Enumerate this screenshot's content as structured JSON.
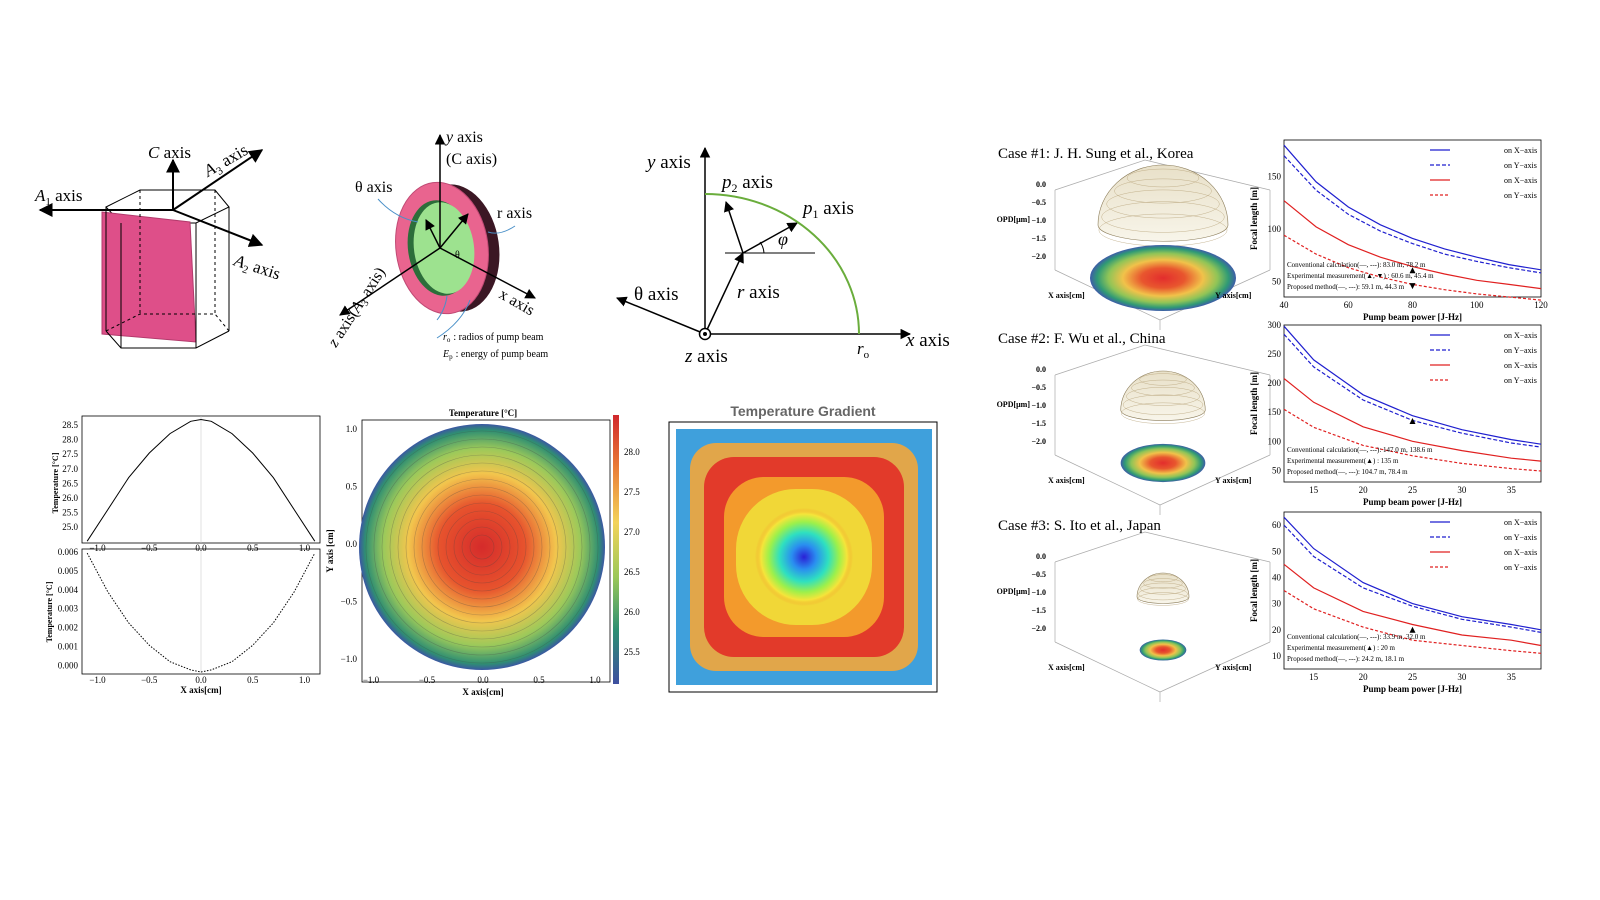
{
  "diagram_crystal": {
    "c_axis": "C axis",
    "a1_axis": "A",
    "a1_sub": "1",
    "a2_axis": "A",
    "a2_sub": "2",
    "a3_axis": "A",
    "a3_sub": "3",
    "axis_word": " axis"
  },
  "diagram_disk": {
    "y_axis": "y axis",
    "c_axis_note": "(C axis)",
    "theta_axis": "θ axis",
    "r_axis": "r axis",
    "x_axis": "x axis",
    "z_axis": "z axis(A",
    "z_axis_sub": "3",
    "z_axis_end": " axis)",
    "theta_small": "θ",
    "legend_ro": ": radios of pump beam",
    "legend_ep": ": energy of pump beam",
    "ro_sym": "r",
    "ro_sub": "o",
    "ep_sym": "E",
    "ep_sub": "p"
  },
  "diagram_polar": {
    "y_axis": "y axis",
    "p2_axis": "p",
    "p2_sub": "2",
    "p1_axis": "p",
    "p1_sub": "1",
    "axis_word": " axis",
    "phi": "φ",
    "theta_axis": "θ axis",
    "r_axis": "r axis",
    "x_axis": "x axis",
    "z_axis": "z axis",
    "ro_sym": "r",
    "ro_sub": "o"
  },
  "temperature_panels": {
    "top_ylabel": "Temperature [°C]",
    "top_yticks": [
      "28.5",
      "28.0",
      "27.5",
      "27.0",
      "26.5",
      "26.0",
      "25.5",
      "25.0"
    ],
    "bottom_ylabel": "Temperature [°C]",
    "bottom_yticks": [
      "0.006",
      "0.005",
      "0.004",
      "0.003",
      "0.002",
      "0.001",
      "0.000"
    ],
    "xticks": [
      "−1.0",
      "−0.5",
      "0.0",
      "0.5",
      "1.0"
    ],
    "xlabel": "X axis[cm]"
  },
  "temperature_map": {
    "title": "Temperature [°C]",
    "xlabel": "X axis[cm]",
    "ylabel": "Y axis [cm]",
    "xticks": [
      "−1.0",
      "−0.5",
      "0.0",
      "0.5",
      "1.0"
    ],
    "yticks": [
      "1.0",
      "0.5",
      "0.0",
      "−0.5",
      "−1.0"
    ],
    "colorbar_ticks": [
      "28.0",
      "27.5",
      "27.0",
      "26.5",
      "26.0",
      "25.5"
    ]
  },
  "gradient_panel": {
    "title": "Temperature Gradient"
  },
  "cases": [
    {
      "title": "Case #1: J. H. Sung et al., Korea",
      "opd_ticks": [
        "0.0",
        "−0.5",
        "−1.0",
        "−1.5",
        "−2.0"
      ],
      "opd_label": "OPD[μm]",
      "x_label": "X axis[cm]",
      "y_label": "Y axis[cm]",
      "ylabel": "Focal length [m]",
      "xlabel": "Pump beam power [J-Hz]",
      "yticks": [
        "150",
        "100",
        "50"
      ],
      "xticks": [
        "40",
        "60",
        "80",
        "100",
        "120"
      ],
      "legend": [
        "on X−axis",
        "on Y−axis",
        "on X−axis",
        "on Y−axis"
      ],
      "notes": [
        "Conventional calculation(—, ---): 83.0 m, 78.2 m",
        "Experimental measurement(▲, ▼) : 60.6 m, 45.4 m",
        "Proposed method(—, ---): 59.1 m, 44.3 m"
      ]
    },
    {
      "title": "Case #2: F. Wu et al., China",
      "opd_ticks": [
        "0.0",
        "−0.5",
        "−1.0",
        "−1.5",
        "−2.0"
      ],
      "opd_label": "OPD[μm]",
      "x_label": "X axis[cm]",
      "y_label": "Y axis[cm]",
      "ylabel": "Focal length [m]",
      "xlabel": "Pump beam power [J-Hz]",
      "yticks": [
        "300",
        "250",
        "200",
        "150",
        "100",
        "50"
      ],
      "xticks": [
        "15",
        "20",
        "25",
        "30",
        "35"
      ],
      "legend": [
        "on X−axis",
        "on Y−axis",
        "on X−axis",
        "on Y−axis"
      ],
      "notes": [
        "Conventional calculation(—, ---): 147.0 m, 138.6 m",
        "Experimental measurement(▲) : 135 m",
        "Proposed method(—, ---): 104.7 m, 78.4 m"
      ]
    },
    {
      "title": "Case #3: S. Ito et al., Japan",
      "opd_ticks": [
        "0.0",
        "−0.5",
        "−1.0",
        "−1.5",
        "−2.0"
      ],
      "opd_label": "OPD[μm]",
      "x_label": "X axis[cm]",
      "y_label": "Y axis[cm]",
      "ylabel": "Focal length [m]",
      "xlabel": "Pump beam power [J-Hz]",
      "yticks": [
        "60",
        "50",
        "40",
        "30",
        "20",
        "10"
      ],
      "xticks": [
        "15",
        "20",
        "25",
        "30",
        "35"
      ],
      "legend": [
        "on X−axis",
        "on Y−axis",
        "on X−axis",
        "on Y−axis"
      ],
      "notes": [
        "Conventional calculation(—, ---): 33.9 m, 32.0 m",
        "Experimental measurement(▲) : 20 m",
        "Proposed method(—, ---): 24.2 m, 18.1 m"
      ]
    }
  ],
  "chart_data": [
    {
      "type": "line",
      "title": "",
      "xlabel": "X axis[cm]",
      "ylabel": "Temperature [°C]",
      "x": [
        -1.1,
        -0.9,
        -0.7,
        -0.5,
        -0.3,
        -0.1,
        0,
        0.1,
        0.3,
        0.5,
        0.7,
        0.9,
        1.1
      ],
      "values": [
        25.05,
        25.95,
        26.85,
        27.55,
        28.1,
        28.45,
        28.5,
        28.45,
        28.1,
        27.55,
        26.85,
        25.95,
        25.05
      ],
      "ylim": [
        25.0,
        28.6
      ]
    },
    {
      "type": "line",
      "title": "",
      "xlabel": "X axis[cm]",
      "ylabel": "Temperature [°C]",
      "x": [
        -1.1,
        -0.9,
        -0.7,
        -0.5,
        -0.3,
        -0.1,
        0,
        0.1,
        0.3,
        0.5,
        0.7,
        0.9,
        1.1
      ],
      "values": [
        0.0058,
        0.0039,
        0.0024,
        0.0013,
        0.0005,
        0.0001,
        0.0,
        0.0001,
        0.0005,
        0.0013,
        0.0024,
        0.0039,
        0.0058
      ],
      "ylim": [
        -0.0001,
        0.006
      ]
    },
    {
      "type": "line",
      "title": "Case #1: J. H. Sung et al., Korea",
      "xlabel": "Pump beam power [J-Hz]",
      "ylabel": "Focal length [m]",
      "x": [
        40,
        50,
        60,
        70,
        80,
        90,
        100,
        110,
        120
      ],
      "series": [
        {
          "values": [
            180,
            145,
            121,
            104,
            91,
            81,
            73,
            66,
            61
          ]
        },
        {
          "values": [
            170,
            137,
            114,
            98,
            86,
            76,
            69,
            63,
            58
          ]
        },
        {
          "values": [
            127,
            102,
            85,
            73,
            64,
            57,
            51,
            47,
            43
          ]
        },
        {
          "values": [
            94,
            76,
            63,
            54,
            47,
            42,
            38,
            35,
            32
          ]
        }
      ],
      "markers": [
        {
          "x": 80,
          "y": 60.6,
          "shape": "up"
        },
        {
          "x": 80,
          "y": 45.4,
          "shape": "down"
        }
      ],
      "ylim": [
        35,
        185
      ],
      "xlim": [
        40,
        120
      ]
    },
    {
      "type": "line",
      "title": "Case #2: F. Wu et al., China",
      "xlabel": "Pump beam power [J-Hz]",
      "ylabel": "Focal length [m]",
      "x": [
        12,
        15,
        20,
        25,
        30,
        35,
        38
      ],
      "series": [
        {
          "values": [
            298,
            240,
            180,
            144,
            120,
            103,
            95
          ]
        },
        {
          "values": [
            284,
            228,
            171,
            136,
            114,
            97,
            90
          ]
        },
        {
          "values": [
            208,
            167,
            125,
            100,
            84,
            71,
            66
          ]
        },
        {
          "values": [
            155,
            124,
            93,
            75,
            62,
            53,
            49
          ]
        }
      ],
      "markers": [
        {
          "x": 25,
          "y": 135,
          "shape": "up"
        }
      ],
      "ylim": [
        30,
        300
      ],
      "xlim": [
        12,
        38
      ]
    },
    {
      "type": "line",
      "title": "Case #3: S. Ito et al., Japan",
      "xlabel": "Pump beam power [J-Hz]",
      "ylabel": "Focal length [m]",
      "x": [
        12,
        15,
        20,
        25,
        30,
        35,
        38
      ],
      "series": [
        {
          "values": [
            63,
            51,
            38,
            30,
            25,
            22,
            20
          ]
        },
        {
          "values": [
            60,
            48,
            36,
            29,
            24,
            21,
            19
          ]
        },
        {
          "values": [
            45,
            36,
            27,
            22,
            18,
            16,
            14
          ]
        },
        {
          "values": [
            35,
            28,
            21,
            16,
            14,
            12,
            11
          ]
        }
      ],
      "markers": [
        {
          "x": 25,
          "y": 20,
          "shape": "up"
        }
      ],
      "ylim": [
        5,
        65
      ],
      "xlim": [
        12,
        38
      ]
    }
  ]
}
